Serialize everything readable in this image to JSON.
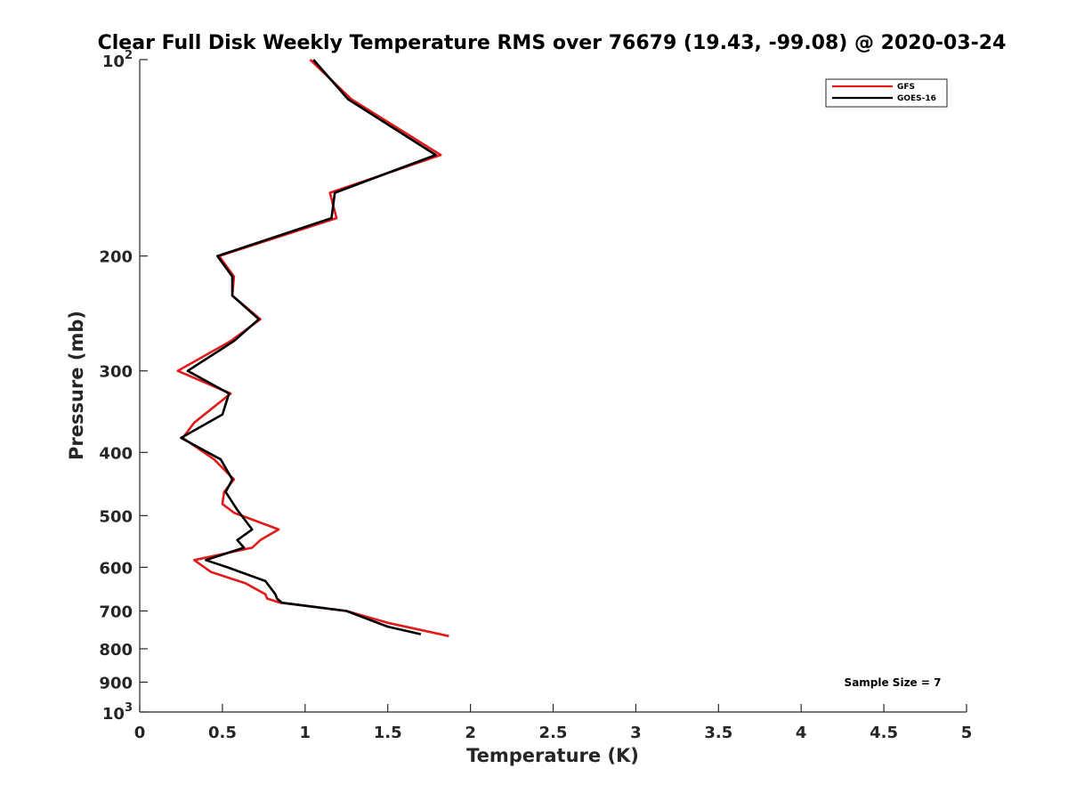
{
  "chart_data": {
    "type": "line",
    "title": "Clear Full Disk Weekly Temperature RMS over 76679 (19.43, -99.08) @ 2020-03-24",
    "xlabel": "Temperature (K)",
    "ylabel": "Pressure (mb)",
    "xlim": [
      0,
      5
    ],
    "ylim": [
      100,
      1000
    ],
    "y_scale": "log",
    "y_reversed": true,
    "x_ticks": [
      "0",
      "0.5",
      "1",
      "1.5",
      "2",
      "2.5",
      "3",
      "3.5",
      "4",
      "4.5",
      "5"
    ],
    "x_tick_values": [
      0,
      0.5,
      1,
      1.5,
      2,
      2.5,
      3,
      3.5,
      4,
      4.5,
      5
    ],
    "y_ticks_plain": [
      "200",
      "300",
      "400",
      "500",
      "600",
      "700",
      "800",
      "900"
    ],
    "y_tick_plain_values": [
      200,
      300,
      400,
      500,
      600,
      700,
      800,
      900
    ],
    "y_ticks_power": [
      {
        "value": 100,
        "base": "10",
        "exp": "2"
      },
      {
        "value": 1000,
        "base": "10",
        "exp": "3"
      }
    ],
    "grid": false,
    "legend_position": "top-right",
    "series": [
      {
        "name": "GFS",
        "color": "#e31a1a",
        "points": [
          [
            1.03,
            100
          ],
          [
            1.28,
            115
          ],
          [
            1.82,
            140
          ],
          [
            1.15,
            160
          ],
          [
            1.19,
            175
          ],
          [
            0.48,
            200
          ],
          [
            0.57,
            215
          ],
          [
            0.56,
            230
          ],
          [
            0.73,
            250
          ],
          [
            0.55,
            270
          ],
          [
            0.23,
            300
          ],
          [
            0.55,
            325
          ],
          [
            0.33,
            360
          ],
          [
            0.26,
            380
          ],
          [
            0.45,
            410
          ],
          [
            0.57,
            440
          ],
          [
            0.51,
            460
          ],
          [
            0.5,
            480
          ],
          [
            0.57,
            495
          ],
          [
            0.84,
            525
          ],
          [
            0.73,
            545
          ],
          [
            0.68,
            560
          ],
          [
            0.33,
            585
          ],
          [
            0.43,
            610
          ],
          [
            0.64,
            635
          ],
          [
            0.76,
            660
          ],
          [
            0.77,
            670
          ],
          [
            0.85,
            680
          ],
          [
            1.25,
            700
          ],
          [
            1.5,
            730
          ],
          [
            1.87,
            765
          ]
        ]
      },
      {
        "name": "GOES-16",
        "color": "#000000",
        "points": [
          [
            1.05,
            100
          ],
          [
            1.26,
            115
          ],
          [
            1.79,
            140
          ],
          [
            1.18,
            160
          ],
          [
            1.16,
            175
          ],
          [
            0.47,
            200
          ],
          [
            0.56,
            215
          ],
          [
            0.56,
            230
          ],
          [
            0.72,
            250
          ],
          [
            0.57,
            270
          ],
          [
            0.29,
            300
          ],
          [
            0.54,
            325
          ],
          [
            0.5,
            350
          ],
          [
            0.25,
            380
          ],
          [
            0.49,
            410
          ],
          [
            0.56,
            440
          ],
          [
            0.52,
            460
          ],
          [
            0.59,
            490
          ],
          [
            0.68,
            525
          ],
          [
            0.59,
            545
          ],
          [
            0.63,
            560
          ],
          [
            0.4,
            585
          ],
          [
            0.53,
            600
          ],
          [
            0.76,
            630
          ],
          [
            0.82,
            660
          ],
          [
            0.83,
            670
          ],
          [
            0.86,
            680
          ],
          [
            1.25,
            700
          ],
          [
            1.5,
            740
          ],
          [
            1.7,
            760
          ]
        ]
      }
    ],
    "annotations": [
      "Sample Size = 7"
    ]
  }
}
